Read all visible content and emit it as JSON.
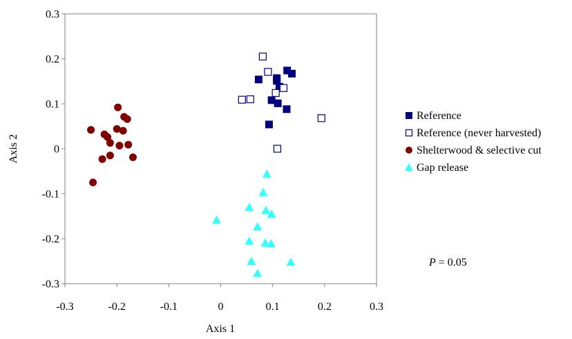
{
  "chart_data": {
    "type": "scatter",
    "xlabel": "Axis 1",
    "ylabel": "Axis 2",
    "xlim": [
      -0.3,
      0.3
    ],
    "ylim": [
      -0.3,
      0.3
    ],
    "xticks": [
      "-0.3",
      "-0.2",
      "-0.1",
      "0",
      "0.1",
      "0.2",
      "0.3"
    ],
    "yticks": [
      "0.3",
      "0.2",
      "0.1",
      "0",
      "-0.1",
      "-0.2",
      "-0.3"
    ],
    "grid": false,
    "legend_position": "right",
    "annotation": {
      "italic": "P",
      "rest": " = 0.05"
    },
    "series": [
      {
        "name": "Reference",
        "marker": "square-filled",
        "color": "#00007f",
        "points": [
          [
            0.073,
            0.154
          ],
          [
            0.108,
            0.157
          ],
          [
            0.128,
            0.174
          ],
          [
            0.137,
            0.167
          ],
          [
            0.113,
            0.138
          ],
          [
            0.098,
            0.108
          ],
          [
            0.11,
            0.101
          ],
          [
            0.127,
            0.088
          ],
          [
            0.093,
            0.054
          ],
          [
            0.108,
            0.151
          ]
        ]
      },
      {
        "name": "Reference (never harvested)",
        "marker": "square-open",
        "color": "#00007f",
        "points": [
          [
            0.081,
            0.205
          ],
          [
            0.091,
            0.171
          ],
          [
            0.121,
            0.135
          ],
          [
            0.106,
            0.124
          ],
          [
            0.041,
            0.109
          ],
          [
            0.057,
            0.11
          ],
          [
            0.194,
            0.068
          ],
          [
            0.109,
            0.0
          ]
        ]
      },
      {
        "name": "Shelterwood & selective cut",
        "marker": "circle-filled",
        "color": "#800000",
        "points": [
          [
            -0.198,
            0.092
          ],
          [
            -0.186,
            0.071
          ],
          [
            -0.18,
            0.066
          ],
          [
            -0.25,
            0.042
          ],
          [
            -0.2,
            0.044
          ],
          [
            -0.188,
            0.04
          ],
          [
            -0.224,
            0.032
          ],
          [
            -0.218,
            0.026
          ],
          [
            -0.213,
            0.013
          ],
          [
            -0.195,
            0.007
          ],
          [
            -0.178,
            0.009
          ],
          [
            -0.213,
            -0.015
          ],
          [
            -0.228,
            -0.023
          ],
          [
            -0.169,
            -0.019
          ],
          [
            -0.246,
            -0.075
          ]
        ]
      },
      {
        "name": "Gap release",
        "marker": "triangle-filled",
        "color": "#33ffff",
        "points": [
          [
            0.089,
            -0.056
          ],
          [
            0.082,
            -0.097
          ],
          [
            0.055,
            -0.13
          ],
          [
            0.087,
            -0.137
          ],
          [
            0.098,
            -0.145
          ],
          [
            -0.008,
            -0.158
          ],
          [
            0.071,
            -0.173
          ],
          [
            0.055,
            -0.205
          ],
          [
            0.086,
            -0.209
          ],
          [
            0.097,
            -0.211
          ],
          [
            0.059,
            -0.25
          ],
          [
            0.135,
            -0.252
          ],
          [
            0.071,
            -0.277
          ]
        ]
      }
    ]
  }
}
